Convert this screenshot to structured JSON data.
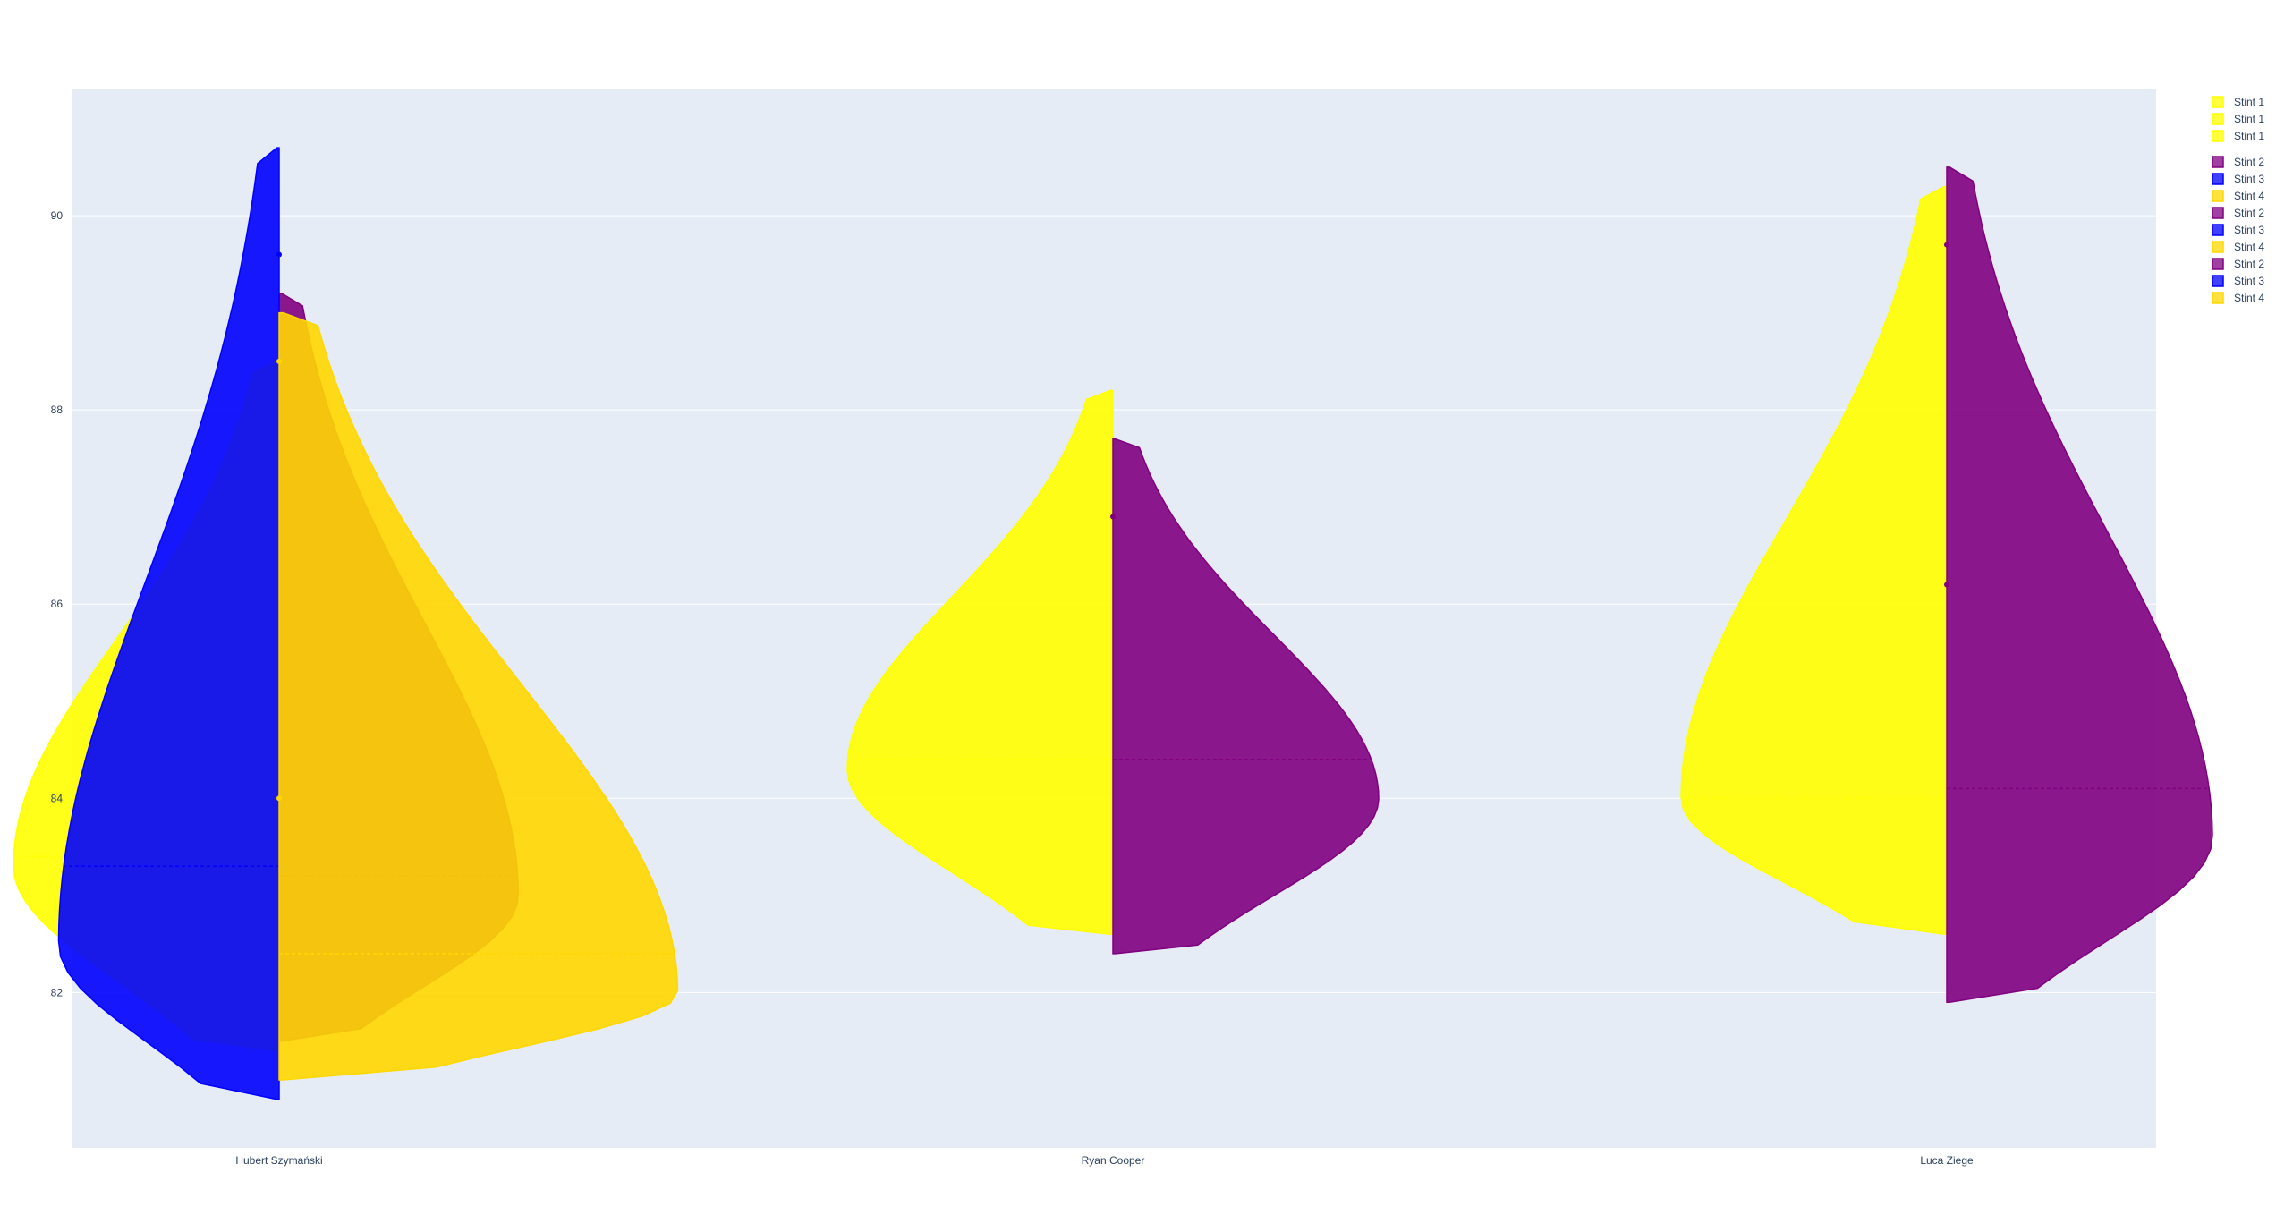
{
  "chart_data": {
    "type": "violin",
    "title": "",
    "xlabel": "",
    "ylabel": "",
    "categories": [
      "Hubert Szymański",
      "Ryan Cooper",
      "Luca Ziege"
    ],
    "ylim": [
      80.4,
      91.3
    ],
    "yticks": [
      82,
      84,
      86,
      88,
      90
    ],
    "grid": true,
    "legend_position": "top-right",
    "series": [
      {
        "legend": "Stint 1",
        "category": "Hubert Szymański",
        "side": "negative",
        "color": "#ffff00",
        "min": 81.4,
        "max": 88.5,
        "median": 83.4,
        "peak": 83.3,
        "width": 1.0
      },
      {
        "legend": "Stint 1",
        "category": "Ryan Cooper",
        "side": "negative",
        "color": "#ffff00",
        "min": 82.6,
        "max": 88.2,
        "median": 84.4,
        "peak": 84.3,
        "width": 1.0
      },
      {
        "legend": "Stint 1",
        "category": "Luca Ziege",
        "side": "negative",
        "color": "#ffff00",
        "min": 82.6,
        "max": 90.3,
        "median": 84.0,
        "peak": 84.0,
        "width": 1.0
      },
      {
        "legend": "Stint 2",
        "category": "Hubert Szymański",
        "side": "positive",
        "color": "#800080",
        "min": 81.5,
        "max": 89.2,
        "median": 83.2,
        "peak": 83.0,
        "width": 0.9
      },
      {
        "legend": "Stint 3",
        "category": "Hubert Szymański",
        "side": "negative",
        "color": "#0000ff",
        "min": 80.9,
        "max": 90.7,
        "median": 83.3,
        "peak": 82.5,
        "width": 0.83
      },
      {
        "legend": "Stint 4",
        "category": "Hubert Szymański",
        "side": "positive",
        "color": "#ffd700",
        "min": 81.1,
        "max": 89.0,
        "median": 82.4,
        "peak": 82.0,
        "width": 1.5
      },
      {
        "legend": "Stint 2",
        "category": "Ryan Cooper",
        "side": "positive",
        "color": "#800080",
        "min": 82.4,
        "max": 87.7,
        "median": 84.4,
        "peak": 84.0,
        "width": 1.0
      },
      {
        "legend": "Stint 3",
        "category": "Ryan Cooper",
        "side": "negative",
        "color": "#0000ff",
        "min": null,
        "max": null,
        "median": null,
        "peak": null,
        "width": 0
      },
      {
        "legend": "Stint 4",
        "category": "Ryan Cooper",
        "side": "positive",
        "color": "#ffd700",
        "min": null,
        "max": null,
        "median": null,
        "peak": null,
        "width": 0
      },
      {
        "legend": "Stint 2",
        "category": "Luca Ziege",
        "side": "positive",
        "color": "#800080",
        "min": 81.9,
        "max": 90.5,
        "median": 84.1,
        "peak": 83.6,
        "width": 1.0
      },
      {
        "legend": "Stint 3",
        "category": "Luca Ziege",
        "side": "negative",
        "color": "#0000ff",
        "min": null,
        "max": null,
        "median": null,
        "peak": null,
        "width": 0
      },
      {
        "legend": "Stint 4",
        "category": "Luca Ziege",
        "side": "positive",
        "color": "#ffd700",
        "min": null,
        "max": null,
        "median": null,
        "peak": null,
        "width": 0
      }
    ],
    "outliers": [
      {
        "category": "Hubert Szymański",
        "y": 89.6,
        "color": "#0000ff"
      },
      {
        "category": "Hubert Szymański",
        "y": 88.5,
        "color": "#ffd700"
      },
      {
        "category": "Hubert Szymański",
        "y": 84.0,
        "color": "#ffd700"
      },
      {
        "category": "Ryan Cooper",
        "y": 86.9,
        "color": "#800080"
      },
      {
        "category": "Luca Ziege",
        "y": 89.7,
        "color": "#800080"
      },
      {
        "category": "Luca Ziege",
        "y": 86.2,
        "color": "#800080"
      }
    ]
  }
}
